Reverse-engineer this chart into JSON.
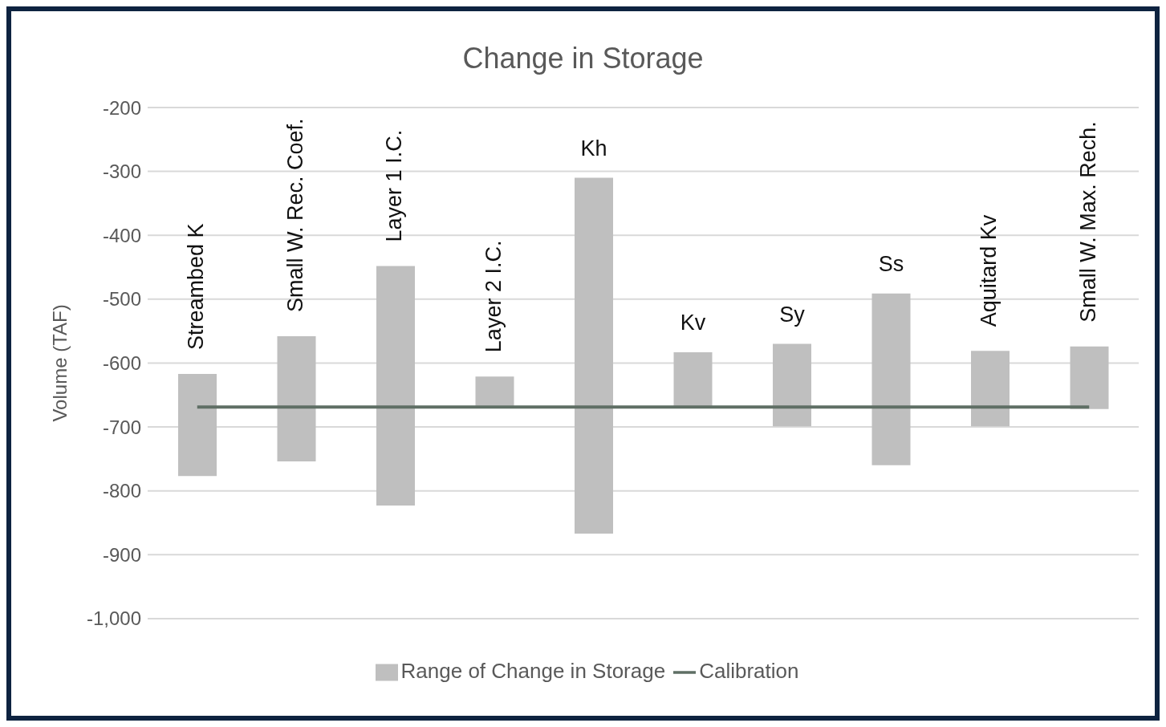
{
  "chart_data": {
    "type": "bar",
    "title": "Change in Storage",
    "ylabel": "Volume (TAF)",
    "categories": [
      "Streambed K",
      "Small W. Rec. Coef.",
      "Layer 1 I.C.",
      "Layer 2 I.C.",
      "Kh",
      "Kv",
      "Sy",
      "Ss",
      "Aquitard Kv",
      "Small W. Max. Rech."
    ],
    "series": [
      {
        "name": "Range of Change in Storage",
        "color": "#bfbfbf",
        "base": [
          -777,
          -754,
          -823,
          -667,
          -867,
          -668,
          -699,
          -760,
          -699,
          -672
        ],
        "values": [
          160,
          196,
          375,
          46,
          557,
          85,
          129,
          269,
          118,
          98
        ]
      },
      {
        "type": "line",
        "name": "Calibration",
        "color": "#5f6f65",
        "values": [
          -669,
          -669,
          -669,
          -669,
          -669,
          -669,
          -669,
          -669,
          -669,
          -669
        ]
      }
    ],
    "ylim": [
      -1000,
      -200
    ],
    "yticks": [
      -200,
      -300,
      -400,
      -500,
      -600,
      -700,
      -800,
      -900,
      {
        "value": -1000,
        "label": "-1,000"
      }
    ],
    "grid": "y",
    "legend": "bottom"
  }
}
